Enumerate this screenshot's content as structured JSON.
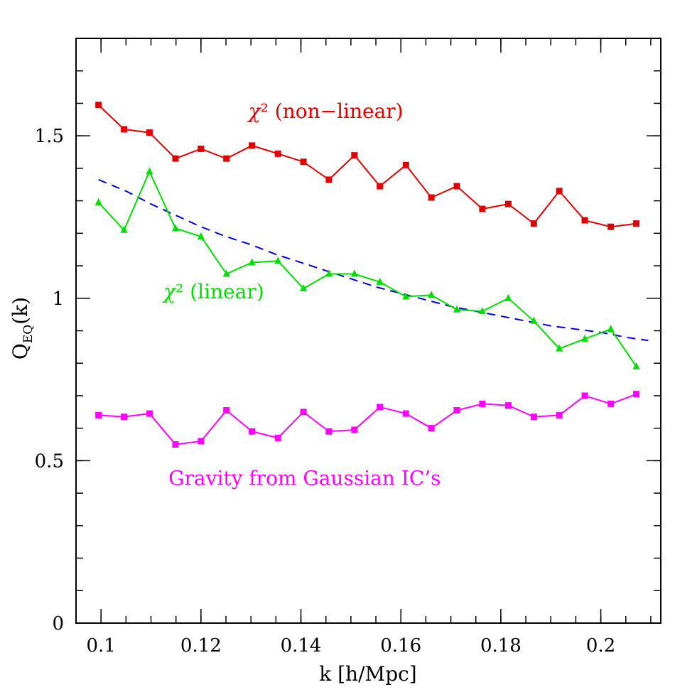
{
  "chart_data": {
    "type": "line",
    "title": "",
    "xlabel": "k [h/Mpc]",
    "ylabel_main": "Q",
    "ylabel_sub": "EQ",
    "ylabel_tail": "(k)",
    "xlim": [
      0.095,
      0.212
    ],
    "ylim": [
      0,
      1.8
    ],
    "xticks": [
      {
        "value": 0.1,
        "label": "0.1"
      },
      {
        "value": 0.12,
        "label": "0.12"
      },
      {
        "value": 0.14,
        "label": "0.14"
      },
      {
        "value": 0.16,
        "label": "0.16"
      },
      {
        "value": 0.18,
        "label": "0.18"
      },
      {
        "value": 0.2,
        "label": "0.2"
      }
    ],
    "yticks": [
      {
        "value": 0,
        "label": "0"
      },
      {
        "value": 0.5,
        "label": "0.5"
      },
      {
        "value": 1,
        "label": "1"
      },
      {
        "value": 1.5,
        "label": "1.5"
      }
    ],
    "x": [
      0.0995,
      0.1046,
      0.1097,
      0.1149,
      0.12,
      0.1251,
      0.1302,
      0.1354,
      0.1405,
      0.1456,
      0.1507,
      0.1558,
      0.161,
      0.1661,
      0.1712,
      0.1763,
      0.1815,
      0.1866,
      0.1917,
      0.1968,
      0.202,
      0.2071
    ],
    "series": [
      {
        "color": "#e00000",
        "marker": "square",
        "values": [
          1.595,
          1.52,
          1.51,
          1.43,
          1.46,
          1.43,
          1.47,
          1.445,
          1.42,
          1.365,
          1.44,
          1.345,
          1.41,
          1.31,
          1.345,
          1.275,
          1.29,
          1.23,
          1.33,
          1.24,
          1.22,
          1.23
        ]
      },
      {
        "color": "#00dd00",
        "marker": "triangle",
        "values": [
          1.295,
          1.21,
          1.39,
          1.215,
          1.19,
          1.075,
          1.11,
          1.115,
          1.03,
          1.075,
          1.075,
          1.05,
          1.005,
          1.01,
          0.965,
          0.96,
          1.0,
          0.93,
          0.845,
          0.875,
          0.905,
          0.79
        ]
      },
      {
        "color": "#ff00ff",
        "marker": "square",
        "values": [
          0.64,
          0.635,
          0.645,
          0.55,
          0.56,
          0.655,
          0.59,
          0.57,
          0.65,
          0.59,
          0.595,
          0.665,
          0.645,
          0.6,
          0.655,
          0.675,
          0.67,
          0.635,
          0.64,
          0.7,
          0.675,
          0.705
        ]
      }
    ],
    "fit_curve": {
      "color": "#0000dd",
      "style": "dashed",
      "x": [
        0.0995,
        0.105,
        0.11,
        0.115,
        0.12,
        0.125,
        0.13,
        0.135,
        0.14,
        0.145,
        0.15,
        0.155,
        0.16,
        0.165,
        0.17,
        0.175,
        0.18,
        0.185,
        0.19,
        0.195,
        0.2,
        0.205,
        0.2095
      ],
      "values": [
        1.365,
        1.33,
        1.29,
        1.255,
        1.22,
        1.19,
        1.165,
        1.135,
        1.11,
        1.085,
        1.06,
        1.035,
        1.015,
        0.995,
        0.975,
        0.96,
        0.945,
        0.93,
        0.915,
        0.905,
        0.895,
        0.88,
        0.87
      ]
    },
    "annotations": [
      {
        "text_main": "χ",
        "text_rest": "² (non−linear)",
        "color": "#e00000",
        "x": 0.1295,
        "y": 1.555
      },
      {
        "text_main": "χ",
        "text_rest": "² (linear)",
        "color": "#00dd00",
        "x": 0.1125,
        "y": 1.0
      },
      {
        "text_main": "",
        "text_rest": "Gravity from Gaussian IC’s",
        "color": "#ff00ff",
        "x": 0.1135,
        "y": 0.425
      }
    ]
  }
}
